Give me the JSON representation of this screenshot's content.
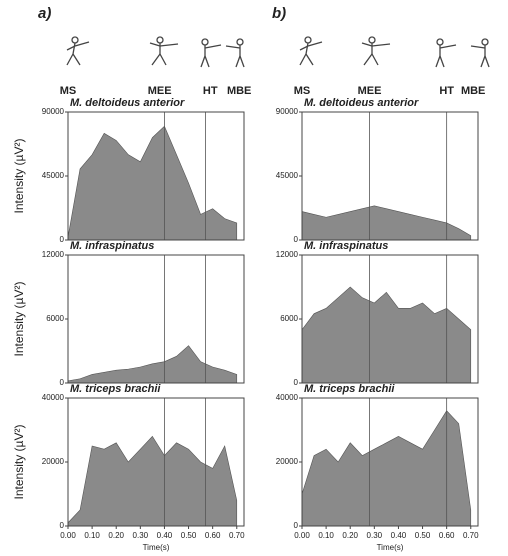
{
  "panels": [
    {
      "label": "a)",
      "events": [
        {
          "label": "MS",
          "value": 0
        },
        {
          "label": "MEE",
          "value": 0.38
        },
        {
          "label": "HT",
          "value": 0.59
        },
        {
          "label": "MBE",
          "value": 0.71
        }
      ],
      "lines": [
        0.4,
        0.57
      ]
    },
    {
      "label": "b)",
      "events": [
        {
          "label": "MS",
          "value": 0
        },
        {
          "label": "MEE",
          "value": 0.28
        },
        {
          "label": "HT",
          "value": 0.6
        },
        {
          "label": "MBE",
          "value": 0.71
        }
      ],
      "lines": [
        0.28,
        0.6
      ]
    }
  ],
  "chart_data": [
    {
      "type": "area",
      "title": "M. deltoideus anterior",
      "ylabel": "Intensity (µV²)",
      "x": [
        0,
        0.05,
        0.1,
        0.15,
        0.2,
        0.25,
        0.3,
        0.35,
        0.4,
        0.45,
        0.5,
        0.55,
        0.6,
        0.65,
        0.7
      ],
      "values": [
        2000,
        50000,
        60000,
        75000,
        70000,
        60000,
        55000,
        72000,
        80000,
        60000,
        40000,
        18000,
        22000,
        15000,
        12000
      ],
      "color": "#8a8a8a",
      "xlim": [
        0,
        0.73
      ],
      "ylim": [
        0,
        90000
      ],
      "yticks": [
        0,
        45000,
        90000
      ]
    },
    {
      "type": "area",
      "title": "M. infraspinatus",
      "ylabel": "Intensity (µV²)",
      "x": [
        0,
        0.05,
        0.1,
        0.15,
        0.2,
        0.25,
        0.3,
        0.35,
        0.4,
        0.45,
        0.5,
        0.55,
        0.6,
        0.65,
        0.7
      ],
      "values": [
        200,
        400,
        800,
        1000,
        1200,
        1300,
        1500,
        1800,
        2000,
        2500,
        3500,
        2000,
        1500,
        1200,
        800
      ],
      "color": "#8a8a8a",
      "xlim": [
        0,
        0.73
      ],
      "ylim": [
        0,
        12000
      ],
      "yticks": [
        0,
        6000,
        12000
      ]
    },
    {
      "type": "area",
      "title": "M. triceps brachii",
      "ylabel": "Intensity (µV²)",
      "xlabel": "Time(s)",
      "x": [
        0,
        0.05,
        0.1,
        0.15,
        0.2,
        0.25,
        0.3,
        0.35,
        0.4,
        0.45,
        0.5,
        0.55,
        0.6,
        0.65,
        0.7
      ],
      "values": [
        1000,
        5000,
        25000,
        24000,
        26000,
        20000,
        24000,
        28000,
        22000,
        26000,
        24000,
        20000,
        18000,
        25000,
        8000
      ],
      "color": "#8a8a8a",
      "xlim": [
        0,
        0.73
      ],
      "ylim": [
        0,
        40000
      ],
      "yticks": [
        0,
        20000,
        40000
      ],
      "xticks": [
        {
          "value": 0,
          "label": "0.00"
        },
        {
          "value": 0.1,
          "label": "0.10"
        },
        {
          "value": 0.2,
          "label": "0.20"
        },
        {
          "value": 0.3,
          "label": "0.30"
        },
        {
          "value": 0.4,
          "label": "0.40"
        },
        {
          "value": 0.5,
          "label": "0.50"
        },
        {
          "value": 0.6,
          "label": "0.60"
        },
        {
          "value": 0.7,
          "label": "0.70"
        }
      ]
    },
    {
      "type": "area",
      "title": "M. deltoideus anterior",
      "x": [
        0,
        0.05,
        0.1,
        0.15,
        0.2,
        0.25,
        0.3,
        0.35,
        0.4,
        0.45,
        0.5,
        0.55,
        0.6,
        0.65,
        0.7
      ],
      "values": [
        20000,
        18000,
        16000,
        18000,
        20000,
        22000,
        24000,
        22000,
        20000,
        18000,
        16000,
        14000,
        12000,
        8000,
        3000
      ],
      "color": "#8a8a8a",
      "xlim": [
        0,
        0.73
      ],
      "ylim": [
        0,
        90000
      ],
      "yticks": [
        0,
        45000,
        90000
      ]
    },
    {
      "type": "area",
      "title": "M. infraspinatus",
      "x": [
        0,
        0.05,
        0.1,
        0.15,
        0.2,
        0.25,
        0.3,
        0.35,
        0.4,
        0.45,
        0.5,
        0.55,
        0.6,
        0.65,
        0.7
      ],
      "values": [
        5000,
        6500,
        7000,
        8000,
        9000,
        8000,
        7500,
        8500,
        7000,
        7000,
        7500,
        6500,
        7000,
        6000,
        5000
      ],
      "color": "#8a8a8a",
      "xlim": [
        0,
        0.73
      ],
      "ylim": [
        0,
        12000
      ],
      "yticks": [
        0,
        6000,
        12000
      ]
    },
    {
      "type": "area",
      "title": "M. triceps brachii",
      "xlabel": "Time(s)",
      "x": [
        0,
        0.05,
        0.1,
        0.15,
        0.2,
        0.25,
        0.3,
        0.35,
        0.4,
        0.45,
        0.5,
        0.55,
        0.6,
        0.65,
        0.7
      ],
      "values": [
        10000,
        22000,
        24000,
        20000,
        26000,
        22000,
        24000,
        26000,
        28000,
        26000,
        24000,
        30000,
        36000,
        32000,
        5000
      ],
      "color": "#8a8a8a",
      "xlim": [
        0,
        0.73
      ],
      "ylim": [
        0,
        40000
      ],
      "yticks": [
        0,
        20000,
        40000
      ],
      "xticks": [
        {
          "value": 0,
          "label": "0.00"
        },
        {
          "value": 0.1,
          "label": "0.10"
        },
        {
          "value": 0.2,
          "label": "0.20"
        },
        {
          "value": 0.3,
          "label": "0.30"
        },
        {
          "value": 0.4,
          "label": "0.40"
        },
        {
          "value": 0.5,
          "label": "0.50"
        },
        {
          "value": 0.6,
          "label": "0.60"
        },
        {
          "value": 0.7,
          "label": "0.70"
        }
      ]
    }
  ]
}
